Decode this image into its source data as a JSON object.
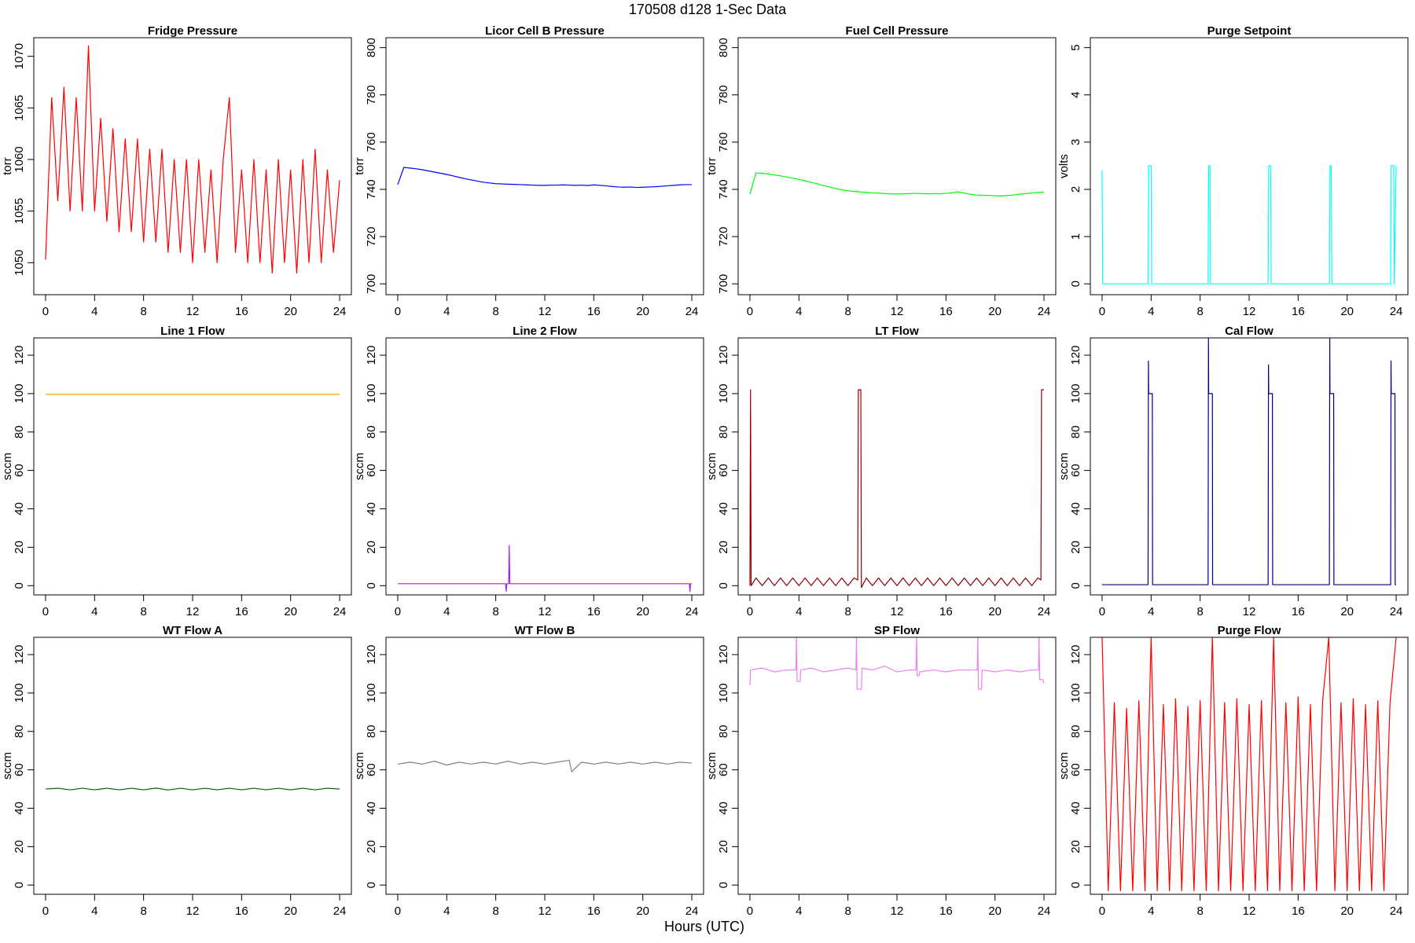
{
  "title": "170508   d128   1-Sec Data",
  "xlabel": "Hours (UTC)",
  "chart_data": [
    {
      "type": "line",
      "title": "Fridge Pressure",
      "ylabel": "torr",
      "color": "#ff0000",
      "x": [
        0,
        0.5,
        1,
        1.5,
        2,
        2.5,
        3,
        3.5,
        4,
        4.5,
        5,
        5.5,
        6,
        6.5,
        7,
        7.5,
        8,
        8.5,
        9,
        9.5,
        10,
        10.5,
        11,
        11.5,
        12,
        12.5,
        13,
        13.5,
        14,
        14.5,
        15,
        15.5,
        16,
        16.5,
        17,
        17.5,
        18,
        18.5,
        19,
        19.5,
        20,
        20.5,
        21,
        21.5,
        22,
        22.5,
        23,
        23.5,
        24
      ],
      "values": [
        1050.3,
        1066,
        1056,
        1067,
        1055,
        1066,
        1055,
        1071,
        1055,
        1064,
        1054,
        1063,
        1053,
        1062,
        1053,
        1062,
        1052,
        1061,
        1052,
        1061,
        1051,
        1060,
        1051,
        1060,
        1050,
        1060,
        1051,
        1059,
        1050,
        1060,
        1066,
        1051,
        1059,
        1050,
        1060,
        1050,
        1059,
        1049,
        1060,
        1050,
        1059,
        1049,
        1060,
        1050,
        1061,
        1050,
        1059,
        1051,
        1058
      ],
      "xlim": [
        -0.96,
        24.96
      ],
      "xticks": [
        0,
        4,
        8,
        12,
        16,
        20,
        24
      ],
      "ylim": [
        1046.9,
        1071.8
      ],
      "yticks": [
        1050,
        1055,
        1060,
        1065,
        1070
      ]
    },
    {
      "type": "line",
      "title": "Licor Cell B Pressure",
      "ylabel": "torr",
      "color": "#0000ff",
      "x": [
        0,
        0.5,
        1,
        1.5,
        2,
        2.5,
        3,
        3.5,
        4,
        4.5,
        5,
        5.5,
        6,
        6.5,
        7,
        7.5,
        8,
        8.5,
        9,
        9.5,
        10,
        10.5,
        11,
        11.5,
        12,
        12.5,
        13,
        13.5,
        14,
        14.5,
        15,
        15.5,
        16,
        16.5,
        17,
        17.5,
        18,
        18.5,
        19,
        19.5,
        20,
        20.5,
        21,
        21.5,
        22,
        22.5,
        23,
        23.5,
        24
      ],
      "values": [
        742,
        749.3,
        749,
        748.7,
        748.3,
        747.8,
        747.3,
        746.8,
        746.3,
        745.7,
        745.1,
        744.5,
        744,
        743.5,
        743,
        742.7,
        742.4,
        742.3,
        742.2,
        742.1,
        742,
        741.9,
        741.8,
        741.7,
        741.7,
        741.8,
        741.8,
        741.9,
        741.8,
        741.7,
        741.8,
        741.6,
        741.9,
        741.7,
        741.5,
        741.2,
        741,
        740.9,
        741,
        740.8,
        740.9,
        741,
        741.1,
        741.3,
        741.5,
        741.7,
        741.9,
        742,
        742
      ],
      "xlim": [
        -0.96,
        24.96
      ],
      "xticks": [
        0,
        4,
        8,
        12,
        16,
        20,
        24
      ],
      "ylim": [
        695.4,
        804.2
      ],
      "yticks": [
        700,
        720,
        740,
        760,
        780,
        800
      ]
    },
    {
      "type": "line",
      "title": "Fuel Cell Pressure",
      "ylabel": "torr",
      "color": "#00ff00",
      "x": [
        0,
        0.5,
        1,
        1.5,
        2,
        2.5,
        3,
        3.5,
        4,
        4.5,
        5,
        5.5,
        6,
        6.5,
        7,
        7.5,
        8,
        8.5,
        9,
        9.5,
        10,
        10.5,
        11,
        11.5,
        12,
        12.5,
        13,
        13.5,
        14,
        14.5,
        15,
        15.5,
        16,
        16.5,
        17,
        17.5,
        18,
        18.5,
        19,
        19.5,
        20,
        20.5,
        21,
        21.5,
        22,
        22.5,
        23,
        23.5,
        24
      ],
      "values": [
        738,
        747,
        746.8,
        746.5,
        746.1,
        745.7,
        745.2,
        744.7,
        744.2,
        743.6,
        743,
        742.3,
        741.6,
        741,
        740.4,
        739.8,
        739.4,
        739.1,
        738.9,
        738.7,
        738.5,
        738.4,
        738.2,
        738.1,
        738,
        738.1,
        738.2,
        738.3,
        738.2,
        738.1,
        738.2,
        738.1,
        738.3,
        738.5,
        738.9,
        738.4,
        737.9,
        737.6,
        737.5,
        737.4,
        737.3,
        737.2,
        737.4,
        737.6,
        737.9,
        738.2,
        738.5,
        738.7,
        738.8
      ],
      "xlim": [
        -0.96,
        24.96
      ],
      "xticks": [
        0,
        4,
        8,
        12,
        16,
        20,
        24
      ],
      "ylim": [
        695.4,
        804.2
      ],
      "yticks": [
        700,
        720,
        740,
        760,
        780,
        800
      ]
    },
    {
      "type": "line",
      "title": "Purge Setpoint",
      "ylabel": "volts",
      "color": "#00ffff",
      "x": [
        0,
        0.05,
        3.75,
        3.8,
        4.0,
        4.05,
        8.65,
        8.7,
        8.8,
        8.85,
        13.55,
        13.6,
        13.75,
        13.8,
        18.55,
        18.6,
        18.7,
        18.75,
        23.55,
        23.6,
        23.8,
        23.85,
        24
      ],
      "values": [
        2.4,
        0,
        0,
        2.5,
        2.5,
        0,
        0,
        2.5,
        2.5,
        0,
        0,
        2.5,
        2.5,
        0,
        0,
        2.5,
        2.5,
        0,
        0,
        2.5,
        2.5,
        0,
        2.5
      ],
      "xlim": [
        -0.96,
        24.96
      ],
      "xticks": [
        0,
        4,
        8,
        12,
        16,
        20,
        24
      ],
      "ylim": [
        -0.23,
        5.21
      ],
      "yticks": [
        0,
        1,
        2,
        3,
        4,
        5
      ]
    },
    {
      "type": "line",
      "title": "Line 1 Flow",
      "ylabel": "sccm",
      "color": "#ffa500",
      "x": [
        0,
        6,
        12,
        18,
        24
      ],
      "values": [
        99.6,
        99.6,
        99.6,
        99.6,
        99.6
      ],
      "xlim": [
        -0.96,
        24.96
      ],
      "xticks": [
        0,
        4,
        8,
        12,
        16,
        20,
        24
      ],
      "ylim": [
        -4.8,
        129
      ],
      "yticks": [
        0,
        20,
        40,
        60,
        80,
        100,
        120
      ]
    },
    {
      "type": "line",
      "title": "Line 2 Flow",
      "ylabel": "sccm",
      "color": "#a020f0",
      "x": [
        0,
        8.8,
        8.85,
        8.9,
        9.05,
        9.1,
        9.15,
        23.8,
        23.85,
        23.9,
        24
      ],
      "values": [
        1,
        1,
        -3,
        1,
        1,
        21,
        1,
        1,
        -3,
        1,
        1
      ],
      "xlim": [
        -0.96,
        24.96
      ],
      "xticks": [
        0,
        4,
        8,
        12,
        16,
        20,
        24
      ],
      "ylim": [
        -4.8,
        129
      ],
      "yticks": [
        0,
        20,
        40,
        60,
        80,
        100,
        120
      ]
    },
    {
      "type": "line",
      "title": "LT Flow",
      "ylabel": "sccm",
      "color": "#8b0000",
      "x": [
        0,
        0.05,
        0.1,
        0.5,
        1,
        1.5,
        2,
        2.5,
        3,
        3.5,
        4,
        4.5,
        5,
        5.5,
        6,
        6.5,
        7,
        7.5,
        8,
        8.5,
        8.8,
        8.85,
        9.05,
        9.1,
        9.5,
        10,
        10.5,
        11,
        11.5,
        12,
        12.5,
        13,
        13.5,
        14,
        14.5,
        15,
        15.5,
        16,
        16.5,
        17,
        17.5,
        18,
        18.5,
        19,
        19.5,
        20,
        20.5,
        21,
        21.5,
        22,
        22.5,
        23,
        23.5,
        23.75,
        23.8,
        24
      ],
      "values": [
        0,
        102,
        0,
        4,
        0,
        4,
        0,
        4,
        0,
        4,
        0,
        4,
        0,
        4,
        0,
        4,
        0,
        4,
        0,
        4,
        3,
        102,
        102,
        -1,
        4,
        0,
        4,
        0,
        4,
        0,
        4,
        0,
        4,
        0,
        4,
        0,
        4,
        0,
        4,
        0,
        4,
        0,
        4,
        0,
        4,
        0,
        4,
        0,
        4,
        0,
        4,
        0,
        4,
        3,
        102,
        102
      ],
      "xlim": [
        -0.96,
        24.96
      ],
      "xticks": [
        0,
        4,
        8,
        12,
        16,
        20,
        24
      ],
      "ylim": [
        -4.8,
        129
      ],
      "yticks": [
        0,
        20,
        40,
        60,
        80,
        100,
        120
      ]
    },
    {
      "type": "line",
      "title": "Cal Flow",
      "ylabel": "sccm",
      "color": "#000080",
      "x": [
        0,
        3.75,
        3.78,
        3.8,
        4.1,
        4.12,
        8.65,
        8.68,
        8.7,
        9.0,
        9.02,
        13.55,
        13.58,
        13.6,
        13.9,
        13.92,
        18.55,
        18.58,
        18.6,
        18.9,
        18.92,
        23.55,
        23.58,
        23.6,
        23.9,
        23.92,
        24
      ],
      "values": [
        0.5,
        0.5,
        117,
        100,
        100,
        0.5,
        0.5,
        129,
        100,
        100,
        0.5,
        0.5,
        115,
        100,
        100,
        0.5,
        0.5,
        129,
        100,
        100,
        0.5,
        0.5,
        117,
        100,
        100,
        0.5,
        0.5
      ],
      "xlim": [
        -0.96,
        24.96
      ],
      "xticks": [
        0,
        4,
        8,
        12,
        16,
        20,
        24
      ],
      "ylim": [
        -4.8,
        129
      ],
      "yticks": [
        0,
        20,
        40,
        60,
        80,
        100,
        120
      ]
    },
    {
      "type": "line",
      "title": "WT Flow A",
      "ylabel": "sccm",
      "color": "#006400",
      "x": [
        0,
        1,
        2,
        3,
        4,
        5,
        6,
        7,
        8,
        9,
        10,
        11,
        12,
        13,
        14,
        15,
        16,
        17,
        18,
        19,
        20,
        21,
        22,
        23,
        24
      ],
      "values": [
        50,
        50.4,
        49.6,
        50.4,
        49.6,
        50.4,
        49.6,
        50.4,
        49.6,
        50.5,
        49.5,
        50.4,
        49.6,
        50.4,
        49.6,
        50.4,
        49.6,
        50.4,
        49.6,
        50.4,
        49.6,
        50.4,
        49.6,
        50.4,
        50
      ],
      "xlim": [
        -0.96,
        24.96
      ],
      "xticks": [
        0,
        4,
        8,
        12,
        16,
        20,
        24
      ],
      "ylim": [
        -4.8,
        129
      ],
      "yticks": [
        0,
        20,
        40,
        60,
        80,
        100,
        120
      ]
    },
    {
      "type": "line",
      "title": "WT Flow B",
      "ylabel": "sccm",
      "color": "#808080",
      "x": [
        0,
        1,
        2,
        3,
        4,
        5,
        6,
        7,
        8,
        9,
        10,
        11,
        12,
        13,
        14,
        14.2,
        15,
        16,
        17,
        18,
        19,
        20,
        21,
        22,
        23,
        24
      ],
      "values": [
        63,
        64,
        63,
        64.5,
        62.5,
        64,
        63,
        64,
        63,
        64.5,
        63,
        64,
        63,
        64,
        65,
        59,
        64,
        63,
        64,
        63,
        64,
        63,
        64,
        63,
        64,
        63.5
      ],
      "xlim": [
        -0.96,
        24.96
      ],
      "xticks": [
        0,
        4,
        8,
        12,
        16,
        20,
        24
      ],
      "ylim": [
        -4.8,
        129
      ],
      "yticks": [
        0,
        20,
        40,
        60,
        80,
        100,
        120
      ]
    },
    {
      "type": "line",
      "title": "SP Flow",
      "ylabel": "sccm",
      "color": "#ee82ee",
      "x": [
        0,
        0.05,
        1,
        2,
        3,
        3.75,
        3.8,
        3.85,
        4.1,
        4.15,
        5,
        6,
        7,
        8,
        8.65,
        8.7,
        8.75,
        9.1,
        9.15,
        10,
        11,
        12,
        13,
        13.55,
        13.6,
        13.65,
        13.8,
        13.85,
        15,
        16,
        17,
        18,
        18.55,
        18.6,
        18.65,
        18.9,
        18.95,
        20,
        21,
        22,
        23,
        23.55,
        23.6,
        23.65,
        23.9,
        24
      ],
      "values": [
        104,
        112,
        113,
        111,
        112,
        112,
        129,
        106,
        106,
        112,
        113,
        111,
        112,
        113,
        112,
        129,
        102,
        102,
        113,
        112,
        114,
        111,
        112,
        112,
        129,
        109,
        109,
        111,
        112,
        111,
        112,
        112,
        112,
        129,
        102,
        102,
        112,
        111,
        112,
        111,
        112,
        112,
        129,
        107,
        107,
        105
      ],
      "xlim": [
        -0.96,
        24.96
      ],
      "xticks": [
        0,
        4,
        8,
        12,
        16,
        20,
        24
      ],
      "ylim": [
        -4.8,
        129
      ],
      "yticks": [
        0,
        20,
        40,
        60,
        80,
        100,
        120
      ]
    },
    {
      "type": "line",
      "title": "Purge Flow",
      "ylabel": "sccm",
      "color": "#ff0000",
      "x": [
        0,
        0.5,
        1,
        1.5,
        2,
        2.5,
        3,
        3.5,
        4,
        4.5,
        5,
        5.5,
        6,
        6.5,
        7,
        7.5,
        8,
        8.5,
        9,
        9.5,
        10,
        10.5,
        11,
        11.5,
        12,
        12.5,
        13,
        13.5,
        14,
        14.5,
        15,
        15.5,
        16,
        16.5,
        17,
        17.5,
        18,
        18.5,
        19,
        19.5,
        20,
        20.5,
        21,
        21.5,
        22,
        22.5,
        23,
        23.5,
        24
      ],
      "values": [
        129,
        -3,
        95,
        -3,
        92,
        -3,
        96,
        -3,
        129,
        -3,
        94,
        -3,
        97,
        -3,
        93,
        -3,
        96,
        -3,
        129,
        -3,
        95,
        -3,
        97,
        -3,
        94,
        -3,
        96,
        -3,
        129,
        -3,
        95,
        -3,
        98,
        -3,
        94,
        -3,
        96,
        129,
        -3,
        95,
        -3,
        97,
        -3,
        94,
        -3,
        96,
        -3,
        95,
        129
      ],
      "xlim": [
        -0.96,
        24.96
      ],
      "xticks": [
        0,
        4,
        8,
        12,
        16,
        20,
        24
      ],
      "ylim": [
        -4.8,
        129
      ],
      "yticks": [
        0,
        20,
        40,
        60,
        80,
        100,
        120
      ]
    }
  ]
}
